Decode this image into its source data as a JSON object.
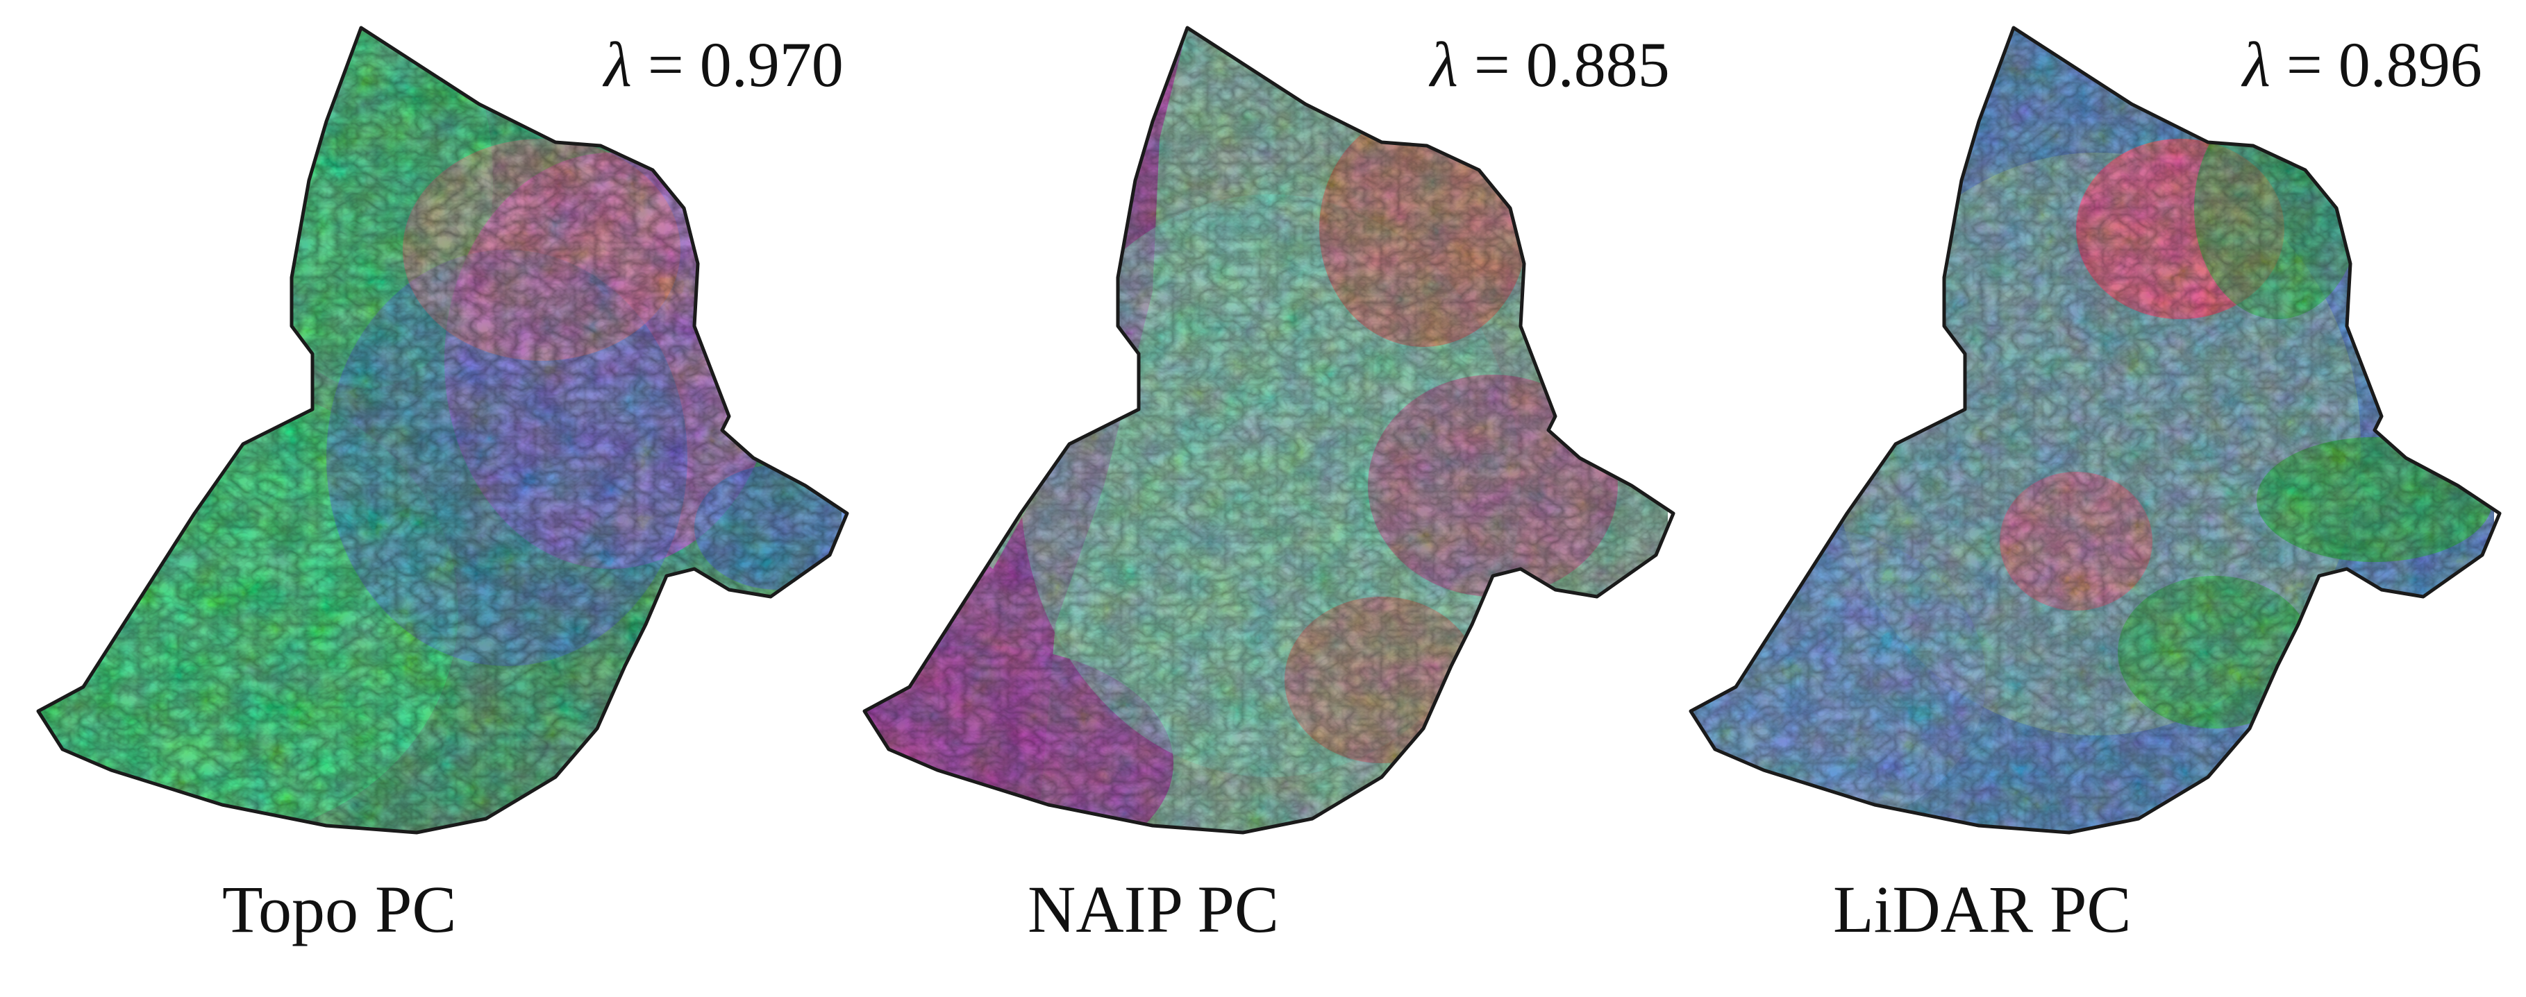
{
  "panels": [
    {
      "caption": "Topo PC",
      "stat_symbol": "λ",
      "stat_eq": " = ",
      "stat_value": "0.970",
      "colors": {
        "base": "#3fae74",
        "a": "#2fe07a",
        "b": "#c655d8",
        "c": "#3f77d8",
        "d": "#e86b7a"
      }
    },
    {
      "caption": "NAIP PC",
      "stat_symbol": "λ",
      "stat_eq": " = ",
      "stat_value": "0.885",
      "colors": {
        "base": "#7fb39c",
        "a": "#9d3a9a",
        "b": "#e0463f",
        "c": "#74d0b7",
        "d": "#c04480"
      }
    },
    {
      "caption": "LiDAR PC",
      "stat_symbol": "λ",
      "stat_eq": " = ",
      "stat_value": "0.896",
      "colors": {
        "base": "#4f86c6",
        "a": "#ef4f78",
        "b": "#1fb53d",
        "c": "#6f9fd6",
        "d": "#9ecf9a"
      }
    }
  ]
}
